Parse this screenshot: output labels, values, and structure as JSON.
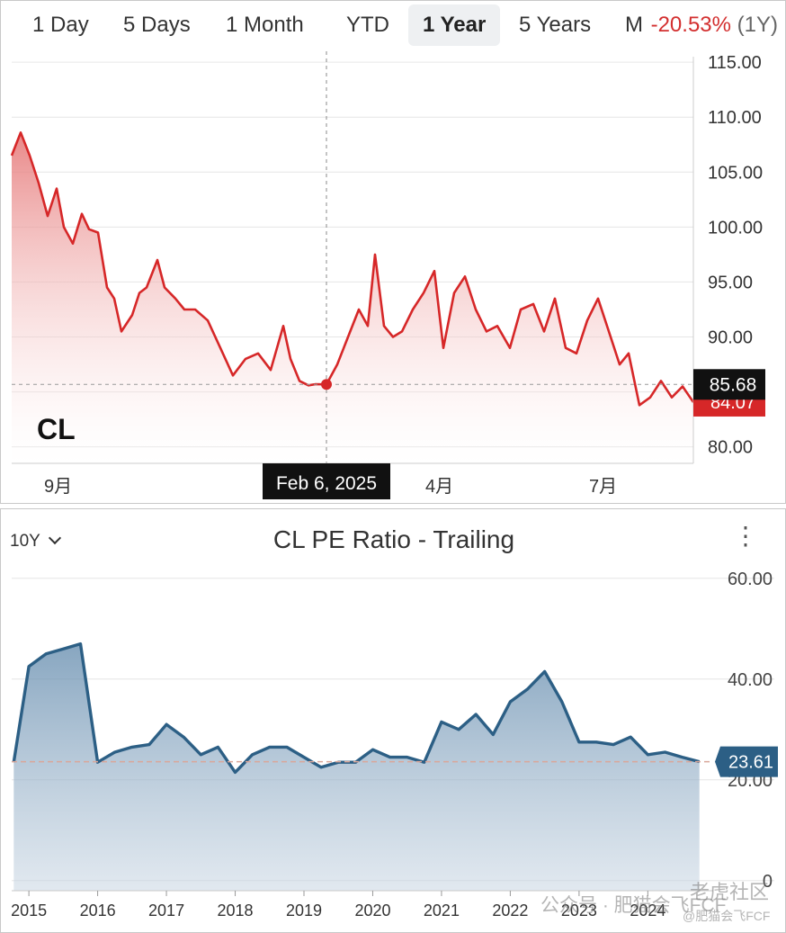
{
  "price_chart": {
    "tabs": [
      "1 Day",
      "5 Days",
      "1 Month",
      "YTD",
      "1 Year",
      "5 Years",
      "M"
    ],
    "active_tab": "1 Year",
    "change_pct": "-20.53%",
    "change_period": "(1Y)",
    "ticker_label": "CL",
    "tooltip_date": "Feb 6, 2025",
    "hover_value": "85.68",
    "last_value": "84.07",
    "x_tick_labels": [
      "9月",
      "202",
      "4月",
      "7月"
    ],
    "y_tick_labels": [
      "115.00",
      "110.00",
      "105.00",
      "100.00",
      "95.00",
      "90.00",
      "80.00"
    ],
    "colors": {
      "line": "#d62728",
      "last_badge": "#d62728",
      "hover_badge": "#111111"
    }
  },
  "pe_chart": {
    "title": "CL PE Ratio - Trailing",
    "range_label": "10Y",
    "current_value": "23.61",
    "y_tick_labels": [
      "60.00",
      "40.00",
      "20.00",
      "0"
    ],
    "x_tick_labels": [
      "2015",
      "2016",
      "2017",
      "2018",
      "2019",
      "2020",
      "2021",
      "2022",
      "2023",
      "2024"
    ],
    "colors": {
      "line": "#2c5f85",
      "badge": "#2c5f85"
    }
  },
  "watermark": {
    "line1": "老虎社区",
    "line2": "公众号 · 肥猫会飞FCF",
    "line3": "@肥猫会飞FCF"
  },
  "chart_data": [
    {
      "type": "area",
      "title": "",
      "xlabel": "",
      "ylabel": "",
      "ylim": [
        78.5,
        115.5
      ],
      "x_range": [
        "2024-08-15",
        "2025-08-29"
      ],
      "x": [
        "2024-08-15",
        "2024-08-20",
        "2024-08-25",
        "2024-08-30",
        "2024-09-04",
        "2024-09-09",
        "2024-09-13",
        "2024-09-18",
        "2024-09-23",
        "2024-09-27",
        "2024-10-02",
        "2024-10-07",
        "2024-10-11",
        "2024-10-15",
        "2024-10-21",
        "2024-10-25",
        "2024-10-29",
        "2024-11-04",
        "2024-11-08",
        "2024-11-14",
        "2024-11-19",
        "2024-11-25",
        "2024-12-02",
        "2024-12-09",
        "2024-12-16",
        "2024-12-23",
        "2024-12-30",
        "2025-01-06",
        "2025-01-13",
        "2025-01-17",
        "2025-01-22",
        "2025-01-27",
        "2025-01-31",
        "2025-02-06",
        "2025-02-12",
        "2025-02-18",
        "2025-02-24",
        "2025-03-01",
        "2025-03-05",
        "2025-03-10",
        "2025-03-15",
        "2025-03-20",
        "2025-03-26",
        "2025-04-01",
        "2025-04-07",
        "2025-04-12",
        "2025-04-18",
        "2025-04-24",
        "2025-04-30",
        "2025-05-06",
        "2025-05-12",
        "2025-05-19",
        "2025-05-25",
        "2025-06-01",
        "2025-06-07",
        "2025-06-13",
        "2025-06-19",
        "2025-06-25",
        "2025-07-01",
        "2025-07-07",
        "2025-07-13",
        "2025-07-19",
        "2025-07-24",
        "2025-07-30",
        "2025-08-05",
        "2025-08-11",
        "2025-08-17",
        "2025-08-23",
        "2025-08-29"
      ],
      "values": [
        106.5,
        108.6,
        106.5,
        104.0,
        101.0,
        103.5,
        100.0,
        98.5,
        101.2,
        99.8,
        99.5,
        94.5,
        93.5,
        90.5,
        92.0,
        94.0,
        94.5,
        97.0,
        94.5,
        93.5,
        92.5,
        92.5,
        91.5,
        89.0,
        86.5,
        88.0,
        88.5,
        87.0,
        91.0,
        88.0,
        86.0,
        85.6,
        85.7,
        85.68,
        87.5,
        90.0,
        92.5,
        91.0,
        97.5,
        91.0,
        90.0,
        90.5,
        92.5,
        94.0,
        96.0,
        89.0,
        94.0,
        95.5,
        92.5,
        90.5,
        91.0,
        89.0,
        92.5,
        93.0,
        90.5,
        93.5,
        89.0,
        88.5,
        91.5,
        93.5,
        90.5,
        87.5,
        88.5,
        83.8,
        84.5,
        86.0,
        84.5,
        85.5,
        84.07
      ],
      "last_value": 84.07,
      "hover": {
        "x": "2025-02-06",
        "y": 85.68
      }
    },
    {
      "type": "area",
      "title": "CL PE Ratio - Trailing",
      "xlabel": "",
      "ylabel": "",
      "ylim": [
        -2.0,
        63.0
      ],
      "x_range": [
        2014.75,
        2024.95
      ],
      "x": [
        2014.78,
        2015.0,
        2015.25,
        2015.5,
        2015.75,
        2016.0,
        2016.25,
        2016.5,
        2016.75,
        2017.0,
        2017.25,
        2017.5,
        2017.75,
        2018.0,
        2018.25,
        2018.5,
        2018.75,
        2019.0,
        2019.25,
        2019.5,
        2019.75,
        2020.0,
        2020.25,
        2020.5,
        2020.75,
        2021.0,
        2021.25,
        2021.5,
        2021.75,
        2022.0,
        2022.25,
        2022.5,
        2022.75,
        2023.0,
        2023.25,
        2023.5,
        2023.75,
        2024.0,
        2024.25,
        2024.5,
        2024.75
      ],
      "values": [
        23.5,
        42.5,
        45.0,
        46.0,
        47.0,
        23.5,
        25.5,
        26.5,
        27.0,
        31.0,
        28.5,
        25.0,
        26.5,
        21.5,
        25.0,
        26.5,
        26.5,
        24.5,
        22.5,
        23.5,
        23.5,
        26.0,
        24.5,
        24.5,
        23.5,
        31.5,
        30.0,
        33.0,
        29.0,
        35.5,
        38.0,
        41.5,
        35.5,
        27.5,
        27.5,
        27.0,
        28.5,
        25.0,
        25.5,
        24.5,
        23.61
      ],
      "last_value": 23.61
    }
  ]
}
